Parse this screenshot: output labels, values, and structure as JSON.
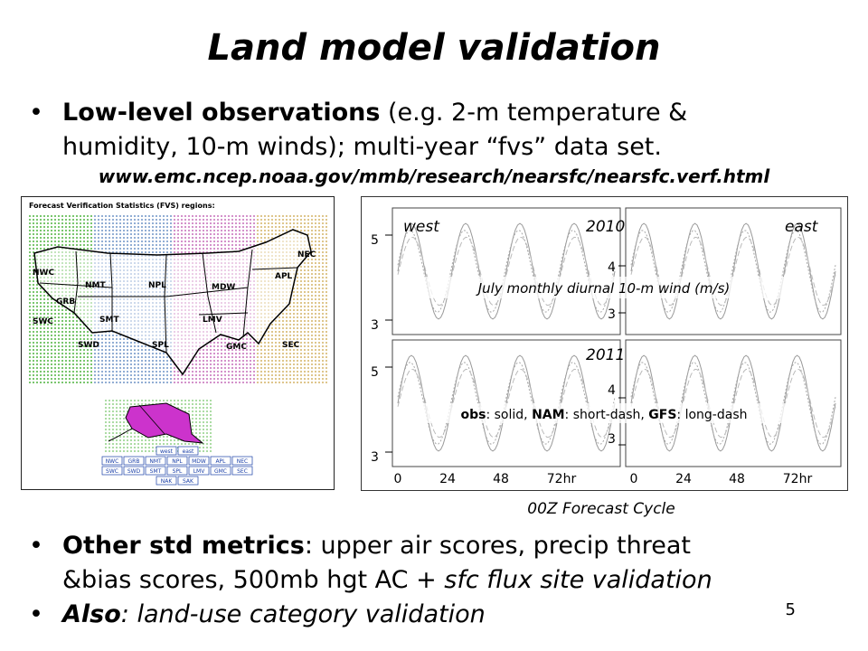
{
  "slide": {
    "title": "Land model validation",
    "page_number": "5"
  },
  "bullet1": {
    "bold": "Low-level observations",
    "line1_rest": " (e.g. 2-m temperature &",
    "line2": "humidity, 10-m winds); multi-year “fvs” data set."
  },
  "url": "www.emc.ncep.noaa.gov/mmb/research/nearsfc/nearsfc.verf.html",
  "map": {
    "heading": "Forecast Verification Statistics (FVS) regions:",
    "regions": [
      "NWC",
      "NMT",
      "NPL",
      "MDW",
      "NEC",
      "APL",
      "GRB",
      "SWC",
      "SMT",
      "LMV",
      "SWD",
      "SPL",
      "GMC",
      "SEC"
    ],
    "button_rows": [
      [
        "west",
        "east"
      ],
      [
        "NWC",
        "GRB",
        "NMT",
        "NPL",
        "MDW",
        "APL",
        "NEC"
      ],
      [
        "SWC",
        "SWD",
        "SMT",
        "SPL",
        "LMV",
        "GMC",
        "SEC"
      ],
      [
        "NAK",
        "SAK"
      ]
    ]
  },
  "panel": {
    "label_west": "west",
    "label_2010": "2010",
    "label_east": "east",
    "label_2011": "2011",
    "caption": "July monthly diurnal 10-m wind (m/s)",
    "legend": {
      "obs_b": "obs",
      "obs_t": ": solid, ",
      "nam_b": "NAM",
      "nam_t": ": short-dash, ",
      "gfs_b": "GFS",
      "gfs_t": ": long-dash"
    },
    "left_yticks": [
      "5",
      "3"
    ],
    "right_yticks": [
      "4",
      "3"
    ],
    "xticks": [
      "0",
      "24",
      "48",
      "72hr"
    ],
    "xlabel": "00Z Forecast Cycle"
  },
  "bullet2": {
    "bold": "Other std metrics",
    "line1_rest": ":  upper air scores, precip threat",
    "line2_plain": "&bias scores, 500mb hgt AC + ",
    "line2_italic": "sfc flux site validation"
  },
  "bullet3": {
    "bold": "Also",
    "rest": ":  land-use category validation"
  },
  "colors": {
    "text": "#000000",
    "alaska": "#cc33cc",
    "button_link": "#1a3fa8"
  }
}
